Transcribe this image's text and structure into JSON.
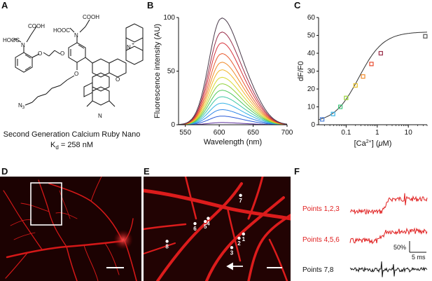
{
  "panels": {
    "A": "A",
    "B": "B",
    "C": "C",
    "D": "D",
    "E": "E",
    "F": "F"
  },
  "structure": {
    "caption_line1": "Second Generation Calcium Ruby Nano",
    "caption_kd_symbol": "K",
    "caption_kd_sub": "d",
    "caption_kd_value": " = 258 nM",
    "labels": {
      "cooh1": "COOH",
      "cooh2": "COOH",
      "hooc1": "HOOC",
      "hooc2": "HOOC",
      "n1": "N",
      "n2": "N",
      "o1": "O",
      "o2": "O",
      "o3": "O",
      "o_ring": "O",
      "nplus": "N",
      "plus": "+",
      "n_bottom": "N",
      "n3": "N",
      "n3sub": "3"
    }
  },
  "chart_data": [
    {
      "type": "line",
      "panel": "B",
      "xlabel": "Wavelength (nm)",
      "ylabel": "Fluorescence intensity (AU)",
      "xlim": [
        540,
        700
      ],
      "ylim": [
        0,
        100
      ],
      "xticks": [
        "550",
        "600",
        "650",
        "700"
      ],
      "yticks": [
        "0",
        "50",
        "100"
      ],
      "peak_wavelength": 603,
      "series": [
        {
          "peak": 2,
          "color": "#5a2d9c"
        },
        {
          "peak": 8,
          "color": "#2a5bd7"
        },
        {
          "peak": 14,
          "color": "#2f86e8"
        },
        {
          "peak": 20,
          "color": "#37b3e6"
        },
        {
          "peak": 26,
          "color": "#3ec7a6"
        },
        {
          "peak": 32,
          "color": "#4ec85a"
        },
        {
          "peak": 38,
          "color": "#8fd03a"
        },
        {
          "peak": 44,
          "color": "#d8d82e"
        },
        {
          "peak": 51,
          "color": "#f2b52a"
        },
        {
          "peak": 58,
          "color": "#f08a2a"
        },
        {
          "peak": 66,
          "color": "#e85a2e"
        },
        {
          "peak": 76,
          "color": "#d8323a"
        },
        {
          "peak": 86,
          "color": "#9a2e4a"
        },
        {
          "peak": 99,
          "color": "#4a3a4a"
        }
      ]
    },
    {
      "type": "scatter",
      "panel": "C",
      "xlabel_prefix": "[Ca",
      "xlabel_sup": "2+",
      "xlabel_suffix": "] (",
      "xlabel_mu": "μ",
      "xlabel_end": "M)",
      "ylabel": "dF/F0",
      "xscale": "log",
      "xlim": [
        0.013,
        40
      ],
      "ylim": [
        0,
        60
      ],
      "xticks": [
        {
          "value": 0.1,
          "label": "0.1"
        },
        {
          "value": 1,
          "label": "1"
        },
        {
          "value": 10,
          "label": "10"
        }
      ],
      "yticks": [
        "0",
        "10",
        "20",
        "30",
        "40",
        "50",
        "60"
      ],
      "fit_kd": 0.258,
      "fit_max": 51,
      "fit_hill": 1.1,
      "points": [
        {
          "x": 0.017,
          "y": 3,
          "color": "#4a7fd8"
        },
        {
          "x": 0.038,
          "y": 6,
          "color": "#37b3e6"
        },
        {
          "x": 0.065,
          "y": 10,
          "color": "#3ec77a"
        },
        {
          "x": 0.1,
          "y": 15,
          "color": "#9ad43a"
        },
        {
          "x": 0.2,
          "y": 22,
          "color": "#e8c12a"
        },
        {
          "x": 0.35,
          "y": 27,
          "color": "#f08a2a"
        },
        {
          "x": 0.65,
          "y": 34,
          "color": "#e84a2e"
        },
        {
          "x": 1.3,
          "y": 40,
          "color": "#9a2e4a"
        },
        {
          "x": 35,
          "y": 49.5,
          "color": "#555555"
        }
      ]
    }
  ],
  "micrograph_E": {
    "points": [
      {
        "label": "1",
        "x": 0.68,
        "y": 0.55
      },
      {
        "label": "2",
        "x": 0.65,
        "y": 0.59
      },
      {
        "label": "3",
        "x": 0.6,
        "y": 0.68
      },
      {
        "label": "4",
        "x": 0.44,
        "y": 0.4
      },
      {
        "label": "5",
        "x": 0.42,
        "y": 0.43
      },
      {
        "label": "6",
        "x": 0.35,
        "y": 0.45
      },
      {
        "label": "7",
        "x": 0.66,
        "y": 0.18
      },
      {
        "label": "8",
        "x": 0.16,
        "y": 0.62
      }
    ]
  },
  "traces": {
    "label1": "Points 1,2,3",
    "label2": "Points 4,5,6",
    "label3": "Points 7,8",
    "scale_pct": "50%",
    "scale_ms": "5 ms",
    "color_red": "#e02020",
    "color_black": "#111111"
  }
}
